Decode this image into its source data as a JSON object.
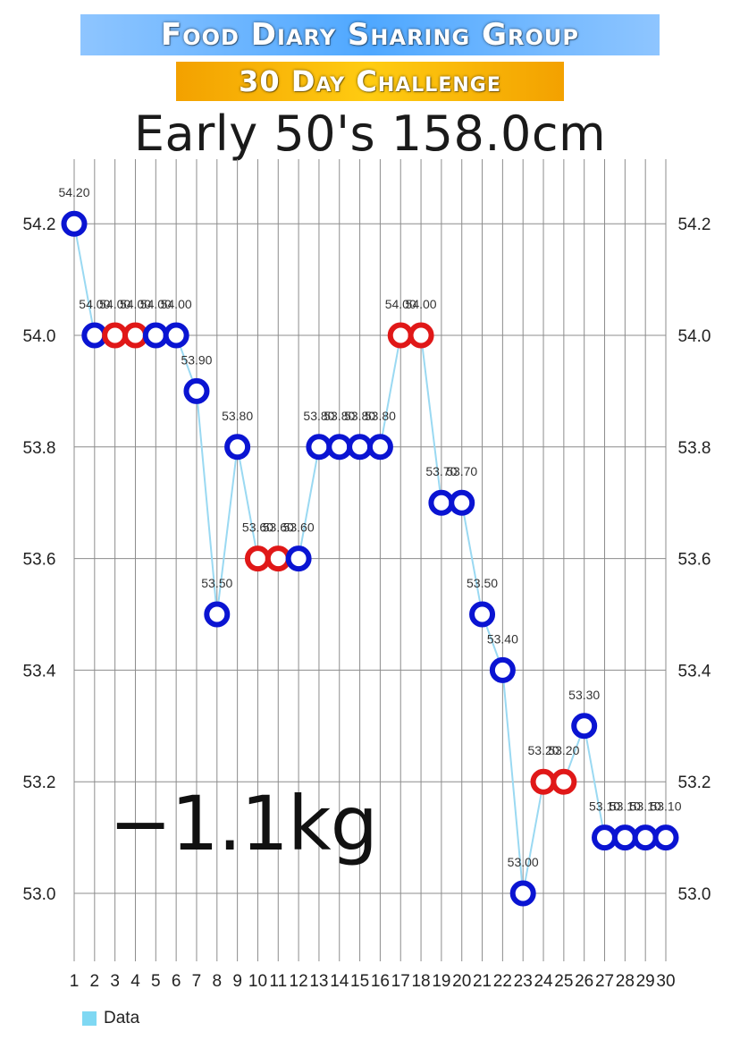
{
  "header": {
    "title_line1": "Food Diary Sharing Group",
    "title_line2": "30 Day Challenge",
    "subtitle": "Early 50's  158.0cm",
    "change_label": "−1.1kg"
  },
  "colors": {
    "banner1_bg": "linear-gradient(90deg,#8ec5ff,#4fa8ff 50%,#8ec5ff)",
    "banner2_bg": "linear-gradient(90deg,#f3a100,#ffcc11 50%,#f3a100)",
    "line": "#9ad9f2",
    "blue_marker": "#0a14d2",
    "red_marker": "#e01818",
    "grid": "#8c8c8c",
    "legend_swatch": "#7fd8f3"
  },
  "legend": {
    "label": "Data"
  },
  "chart_data": {
    "type": "line",
    "x": [
      1,
      2,
      3,
      4,
      5,
      6,
      7,
      8,
      9,
      10,
      11,
      12,
      13,
      14,
      15,
      16,
      17,
      18,
      19,
      20,
      21,
      22,
      23,
      24,
      25,
      26,
      27,
      28,
      29,
      30
    ],
    "values": [
      54.2,
      54.0,
      54.0,
      54.0,
      54.0,
      54.0,
      53.9,
      53.5,
      53.8,
      53.6,
      53.6,
      53.6,
      53.8,
      53.8,
      53.8,
      53.8,
      54.0,
      54.0,
      53.7,
      53.7,
      53.5,
      53.4,
      53.0,
      53.2,
      53.2,
      53.3,
      53.1,
      53.1,
      53.1,
      53.1
    ],
    "data_labels": [
      "54.20",
      "54.00",
      "54.00",
      "54.00",
      "54.00",
      "54.00",
      "53.90",
      "53.50",
      "53.80",
      "53.60",
      "53.60",
      "53.60",
      "53.80",
      "53.80",
      "53.80",
      "53.80",
      "54.00",
      "54.00",
      "53.70",
      "53.70",
      "53.50",
      "53.40",
      "53.00",
      "53.20",
      "53.20",
      "53.30",
      "53.10",
      "53.10",
      "53.10",
      "53.10"
    ],
    "marker_colors": [
      "blue",
      "blue",
      "red",
      "red",
      "blue",
      "blue",
      "blue",
      "blue",
      "blue",
      "red",
      "red",
      "blue",
      "blue",
      "blue",
      "blue",
      "blue",
      "red",
      "red",
      "blue",
      "blue",
      "blue",
      "blue",
      "blue",
      "red",
      "red",
      "blue",
      "blue",
      "blue",
      "blue",
      "blue"
    ],
    "y_ticks": [
      "53.0",
      "53.2",
      "53.4",
      "53.6",
      "53.8",
      "54.0",
      "54.2"
    ],
    "x_ticks": [
      "1",
      "2",
      "3",
      "4",
      "5",
      "6",
      "7",
      "8",
      "9",
      "10",
      "11",
      "12",
      "13",
      "14",
      "15",
      "16",
      "17",
      "18",
      "19",
      "20",
      "21",
      "22",
      "23",
      "24",
      "25",
      "26",
      "27",
      "28",
      "29",
      "30"
    ],
    "ylim": [
      52.88,
      54.32
    ],
    "grid": true,
    "legend_position": "bottom-left",
    "series": [
      {
        "name": "Data"
      }
    ]
  }
}
